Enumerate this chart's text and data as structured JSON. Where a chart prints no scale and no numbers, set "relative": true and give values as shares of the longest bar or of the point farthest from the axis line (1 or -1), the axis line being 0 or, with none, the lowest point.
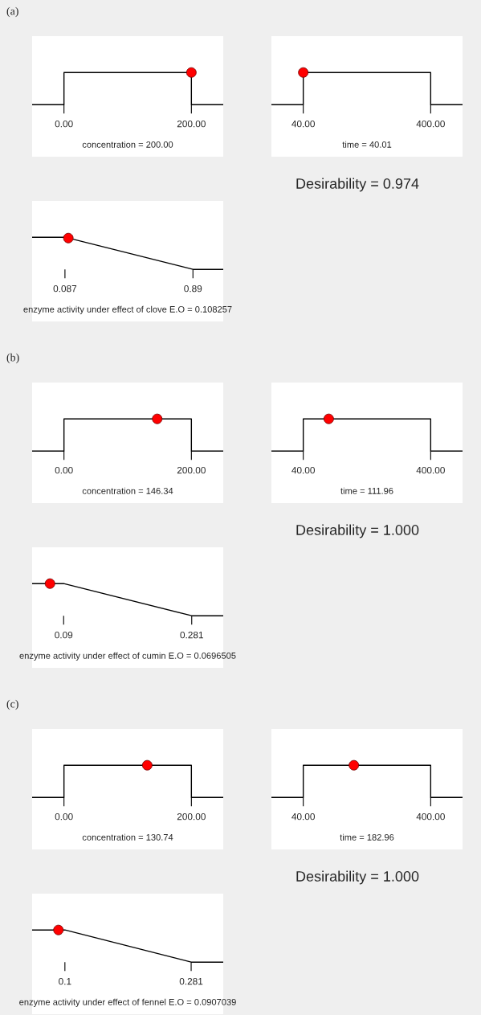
{
  "chart_data": [
    {
      "type": "line",
      "xlabel": "concentration = 200.00",
      "relative": true,
      "tick_labels": "x",
      "xlim": [
        -50,
        250
      ],
      "xticks": [
        {
          "value": 0,
          "label": "0.00"
        },
        {
          "value": 200,
          "label": "200.00"
        }
      ],
      "series": [
        {
          "x": [
            -50,
            0,
            0,
            200,
            200,
            250
          ],
          "values": [
            0,
            0,
            1,
            1,
            0,
            0
          ],
          "color": "#000000"
        },
        {
          "type": "scatter",
          "marker": "circle",
          "x": [
            200
          ],
          "values": [
            1
          ],
          "color": "#ff0000"
        }
      ]
    },
    {
      "type": "line",
      "xlabel": "time = 40.01",
      "relative": true,
      "tick_labels": "x",
      "xlim": [
        -50,
        490
      ],
      "xticks": [
        {
          "value": 40,
          "label": "40.00"
        },
        {
          "value": 400,
          "label": "400.00"
        }
      ],
      "series": [
        {
          "x": [
            -50,
            40,
            40,
            400,
            400,
            490
          ],
          "values": [
            0,
            0,
            1,
            1,
            0,
            0
          ],
          "color": "#000000"
        },
        {
          "type": "scatter",
          "marker": "circle",
          "x": [
            40.01
          ],
          "values": [
            1
          ],
          "color": "#ff0000"
        }
      ]
    },
    {
      "type": "line",
      "xlabel": "enzyme activity under effect of clove E.O = 0.108257",
      "relative": true,
      "tick_labels": "x",
      "xlim": [
        -0.119,
        1.08
      ],
      "xticks": [
        0.087,
        0.89
      ],
      "series": [
        {
          "x": [
            -0.119,
            0.087,
            0.89,
            1.08
          ],
          "values": [
            1,
            1,
            0,
            0
          ],
          "color": "#000000"
        },
        {
          "type": "scatter",
          "marker": "circle",
          "x": [
            0.108257
          ],
          "values": [
            0.974
          ],
          "color": "#ff0000"
        }
      ]
    },
    {
      "type": "other",
      "title": "Desirability = 0.974",
      "annotations": [
        "(a)"
      ]
    },
    {
      "type": "line",
      "xlabel": "concentration = 146.34",
      "relative": true,
      "tick_labels": "x",
      "xlim": [
        -50,
        250
      ],
      "xticks": [
        {
          "value": 0,
          "label": "0.00"
        },
        {
          "value": 200,
          "label": "200.00"
        }
      ],
      "series": [
        {
          "x": [
            -50,
            0,
            0,
            200,
            200,
            250
          ],
          "values": [
            0,
            0,
            1,
            1,
            0,
            0
          ],
          "color": "#000000"
        },
        {
          "type": "scatter",
          "marker": "circle",
          "x": [
            146.34
          ],
          "values": [
            1
          ],
          "color": "#ff0000"
        }
      ]
    },
    {
      "type": "line",
      "xlabel": "time = 111.96",
      "relative": true,
      "tick_labels": "x",
      "xlim": [
        -50,
        490
      ],
      "xticks": [
        {
          "value": 40,
          "label": "40.00"
        },
        {
          "value": 400,
          "label": "400.00"
        }
      ],
      "series": [
        {
          "x": [
            -50,
            40,
            40,
            400,
            400,
            490
          ],
          "values": [
            0,
            0,
            1,
            1,
            0,
            0
          ],
          "color": "#000000"
        },
        {
          "type": "scatter",
          "marker": "circle",
          "x": [
            111.96
          ],
          "values": [
            1
          ],
          "color": "#ff0000"
        }
      ]
    },
    {
      "type": "line",
      "xlabel": "enzyme activity under effect of cumin E.O = 0.0696505",
      "relative": true,
      "tick_labels": "x",
      "xlim": [
        0.043,
        0.328
      ],
      "xticks": [
        0.09,
        0.281
      ],
      "series": [
        {
          "x": [
            0.043,
            0.09,
            0.281,
            0.328
          ],
          "values": [
            1,
            1,
            0,
            0
          ],
          "color": "#000000"
        },
        {
          "type": "scatter",
          "marker": "circle",
          "x": [
            0.0696505
          ],
          "values": [
            1
          ],
          "color": "#ff0000"
        }
      ]
    },
    {
      "type": "other",
      "title": "Desirability = 1.000",
      "annotations": [
        "(b)"
      ]
    },
    {
      "type": "line",
      "xlabel": "concentration = 130.74",
      "relative": true,
      "tick_labels": "x",
      "xlim": [
        -50,
        250
      ],
      "xticks": [
        {
          "value": 0,
          "label": "0.00"
        },
        {
          "value": 200,
          "label": "200.00"
        }
      ],
      "series": [
        {
          "x": [
            -50,
            0,
            0,
            200,
            200,
            250
          ],
          "values": [
            0,
            0,
            1,
            1,
            0,
            0
          ],
          "color": "#000000"
        },
        {
          "type": "scatter",
          "marker": "circle",
          "x": [
            130.74
          ],
          "values": [
            1
          ],
          "color": "#ff0000"
        }
      ]
    },
    {
      "type": "line",
      "xlabel": "time = 182.96",
      "relative": true,
      "tick_labels": "x",
      "xlim": [
        -50,
        490
      ],
      "xticks": [
        {
          "value": 40,
          "label": "40.00"
        },
        {
          "value": 400,
          "label": "400.00"
        }
      ],
      "series": [
        {
          "x": [
            -50,
            40,
            40,
            400,
            400,
            490
          ],
          "values": [
            0,
            0,
            1,
            1,
            0,
            0
          ],
          "color": "#000000"
        },
        {
          "type": "scatter",
          "marker": "circle",
          "x": [
            182.96
          ],
          "values": [
            1
          ],
          "color": "#ff0000"
        }
      ]
    },
    {
      "type": "line",
      "xlabel": "enzyme activity under effect of fennel E.O = 0.0907039",
      "relative": true,
      "tick_labels": "x",
      "xlim": [
        0.053,
        0.327
      ],
      "xticks": [
        0.1,
        0.281
      ],
      "series": [
        {
          "x": [
            0.053,
            0.1,
            0.281,
            0.327
          ],
          "values": [
            1,
            1,
            0,
            0
          ],
          "color": "#000000"
        },
        {
          "type": "scatter",
          "marker": "circle",
          "x": [
            0.0907039
          ],
          "values": [
            1
          ],
          "color": "#ff0000"
        }
      ]
    },
    {
      "type": "other",
      "title": "Desirability = 1.000",
      "annotations": [
        "(c)"
      ]
    }
  ]
}
